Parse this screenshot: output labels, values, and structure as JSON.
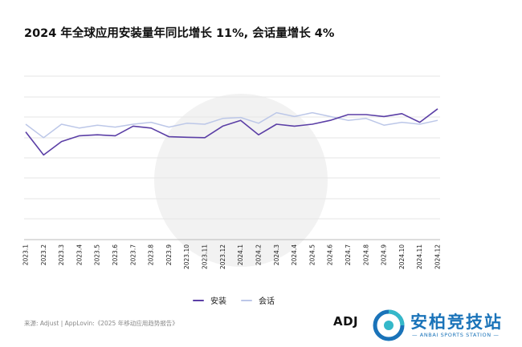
{
  "chart_data": {
    "type": "line",
    "title": "2024 年全球应用安装量年同比增长 11%, 会话量增长 4%",
    "categories": [
      "2023.1",
      "2023.2",
      "2023.3",
      "2023.4",
      "2023.5",
      "2023.6",
      "2023.7",
      "2023.8",
      "2023.9",
      "2023.10",
      "2023.11",
      "2023.12",
      "2024.1",
      "2024.2",
      "2024.3",
      "2024.4",
      "2024.5",
      "2024.6",
      "2024.7",
      "2024.8",
      "2024.9",
      "2024.10",
      "2024.11",
      "2024.12"
    ],
    "series": [
      {
        "name": "安装",
        "color": "#5b3fa6",
        "values": [
          96,
          84,
          91,
          94,
          94.5,
          94,
          99,
          98,
          93.5,
          93.2,
          93,
          99,
          102,
          94.5,
          100,
          99,
          100,
          102,
          105,
          105,
          104,
          105.5,
          101,
          108
        ]
      },
      {
        "name": "会话",
        "color": "#bcc7e8",
        "values": [
          100,
          93,
          100,
          98,
          99.5,
          98.5,
          100,
          101,
          98.5,
          100.5,
          100,
          103,
          103.5,
          100.5,
          106,
          104,
          106,
          104,
          102,
          103,
          99.5,
          101,
          100,
          102
        ]
      }
    ],
    "ylim": [
      40,
      125
    ],
    "grid": true,
    "y_tick_labels_shown": false,
    "legend_position": "bottom-center"
  },
  "legend": {
    "items": [
      "安装",
      "会话"
    ]
  },
  "source": "来源: Adjust | AppLovin:《2025 年移动应用趋势报告》",
  "logo_text": "ADJ",
  "brand": {
    "name": "安柏竞技站",
    "subtitle": "— ANBAI SPORTS STATION —",
    "color": "#1a73b9"
  }
}
